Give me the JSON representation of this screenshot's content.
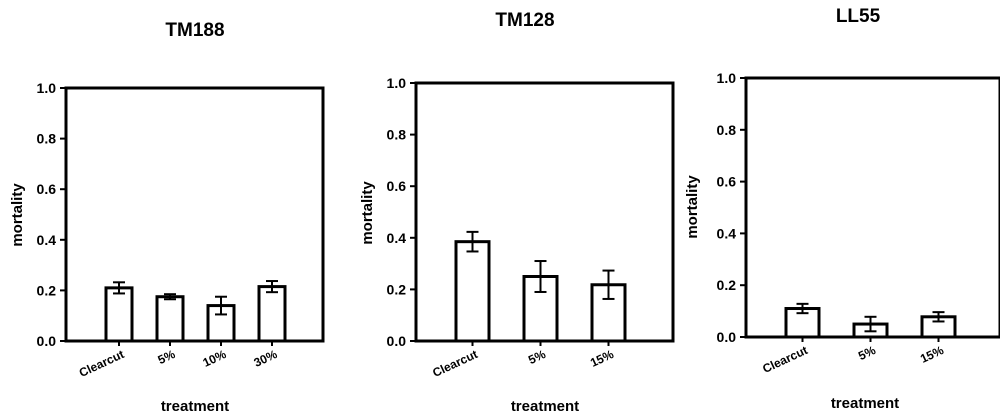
{
  "chart_data": [
    {
      "type": "bar",
      "title": "TM188",
      "xlabel": "treatment",
      "ylabel": "mortality",
      "ylim": [
        0,
        1.0
      ],
      "yticks": [
        "0.0",
        "0.2",
        "0.4",
        "0.6",
        "0.8",
        "1.0"
      ],
      "categories": [
        "Clearcut",
        "5%",
        "10%",
        "30%"
      ],
      "values": [
        0.21,
        0.175,
        0.14,
        0.215
      ],
      "error": [
        0.022,
        0.01,
        0.035,
        0.022
      ],
      "grid": false,
      "bar_fill": "#ffffff",
      "bar_stroke": "#000000"
    },
    {
      "type": "bar",
      "title": "TM128",
      "xlabel": "treatment",
      "ylabel": "mortality",
      "ylim": [
        0,
        1.0
      ],
      "yticks": [
        "0.0",
        "0.2",
        "0.4",
        "0.6",
        "0.8",
        "1.0"
      ],
      "categories": [
        "Clearcut",
        "5%",
        "15%"
      ],
      "values": [
        0.385,
        0.25,
        0.218
      ],
      "error": [
        0.038,
        0.06,
        0.055
      ],
      "grid": false,
      "bar_fill": "#ffffff",
      "bar_stroke": "#000000"
    },
    {
      "type": "bar",
      "title": "LL55",
      "xlabel": "treatment",
      "ylabel": "mortality",
      "ylim": [
        0,
        1.0
      ],
      "yticks": [
        "0.0",
        "0.2",
        "0.4",
        "0.6",
        "0.8",
        "1.0"
      ],
      "categories": [
        "Clearcut",
        "5%",
        "15%"
      ],
      "values": [
        0.11,
        0.05,
        0.078
      ],
      "error": [
        0.018,
        0.028,
        0.018
      ],
      "grid": false,
      "bar_fill": "#ffffff",
      "bar_stroke": "#000000"
    }
  ]
}
